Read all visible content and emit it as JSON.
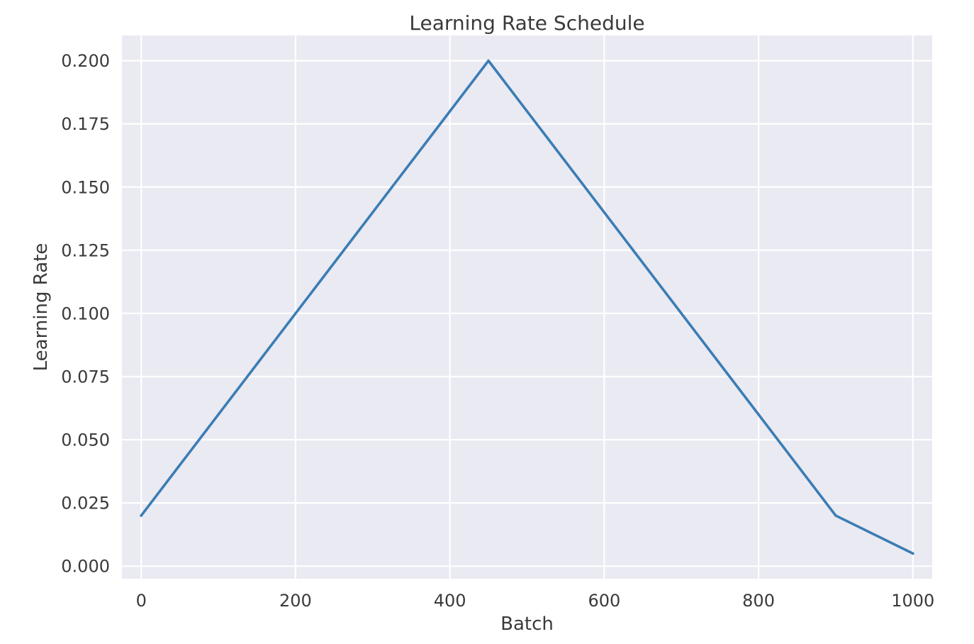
{
  "chart_data": {
    "type": "line",
    "title": "Learning Rate Schedule",
    "xlabel": "Batch",
    "ylabel": "Learning Rate",
    "xlim": [
      -25,
      1025
    ],
    "ylim": [
      -0.005,
      0.21
    ],
    "x_ticks": [
      0,
      200,
      400,
      600,
      800,
      1000
    ],
    "x_tick_labels": [
      "0",
      "200",
      "400",
      "600",
      "800",
      "1000"
    ],
    "y_ticks": [
      0.0,
      0.025,
      0.05,
      0.075,
      0.1,
      0.125,
      0.15,
      0.175,
      0.2
    ],
    "y_tick_labels": [
      "0.000",
      "0.025",
      "0.050",
      "0.075",
      "0.100",
      "0.125",
      "0.150",
      "0.175",
      "0.200"
    ],
    "grid": true,
    "series": [
      {
        "x": [
          0,
          450,
          900,
          1000
        ],
        "y": [
          0.02,
          0.2,
          0.02,
          0.005
        ]
      }
    ],
    "colors": {
      "plot_background": "#eaeaf2",
      "grid": "#ffffff",
      "line": "#3a7db5",
      "text": "#3a3a3a"
    }
  }
}
